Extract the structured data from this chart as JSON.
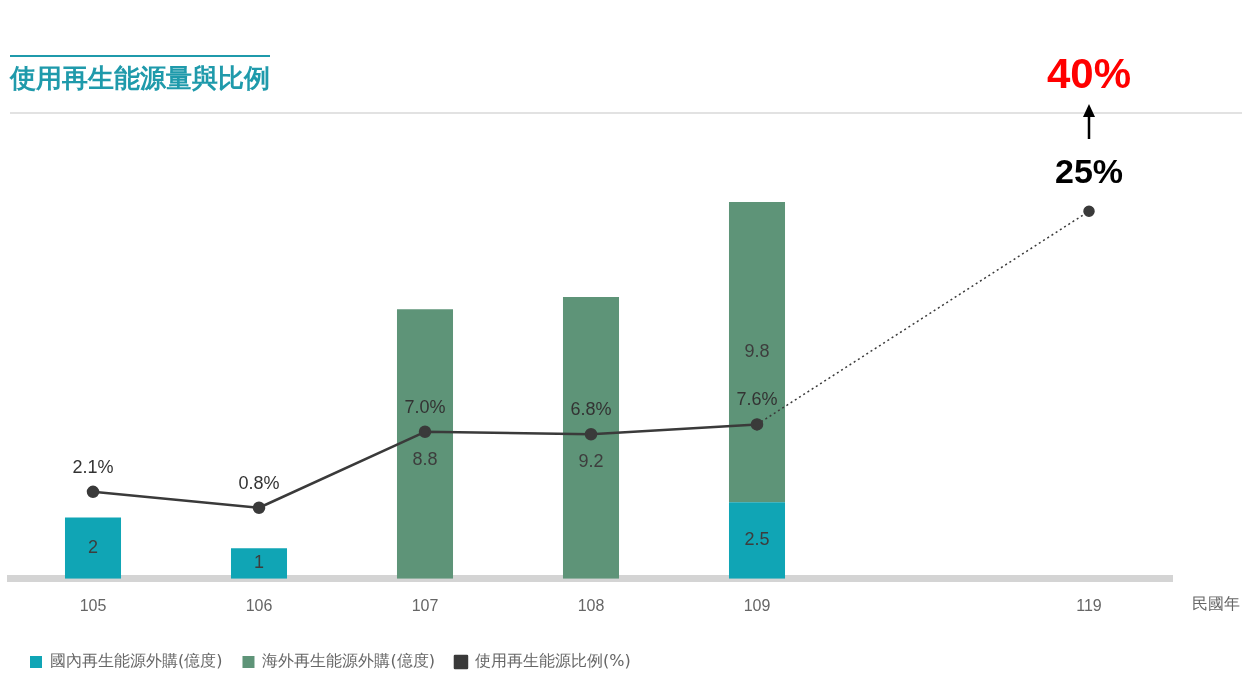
{
  "chart_data": {
    "type": "bar",
    "title": "使用再生能源量與比例",
    "xlabel": "民國年",
    "categories": [
      "105",
      "106",
      "107",
      "108",
      "109",
      null,
      "119"
    ],
    "stacked": true,
    "grid": false,
    "legend": "bottom left",
    "marker": "circle",
    "series": [
      {
        "name": "國內再生能源外購(億度)",
        "color": "#10a5b5",
        "values": [
          2,
          1,
          null,
          null,
          2.5,
          null,
          null
        ],
        "value_labels": [
          "2",
          "1",
          null,
          null,
          "2.5",
          null,
          null
        ]
      },
      {
        "name": "海外再生能源外購(億度)",
        "color": "#5e9478",
        "values": [
          null,
          null,
          8.8,
          9.2,
          9.8,
          null,
          null
        ],
        "value_labels": [
          null,
          null,
          "8.8",
          "9.2",
          "9.8",
          null,
          null
        ]
      },
      {
        "name": "使用再生能源比例(%)",
        "type": "line",
        "axis": "y2",
        "color": "#3a3a3a",
        "line_style": "solid",
        "values": [
          2.1,
          0.8,
          7.0,
          6.8,
          7.6,
          null,
          null
        ],
        "value_labels": [
          "2.1%",
          "0.8%",
          "7.0%",
          "6.8%",
          "7.6%",
          null,
          null
        ]
      },
      {
        "type": "line",
        "axis": "y2",
        "color": "#3a3a3a",
        "line_style": "dotted",
        "marker": "circle",
        "values": [
          null,
          null,
          null,
          null,
          7.6,
          null,
          25
        ],
        "value_labels": [
          null,
          null,
          null,
          null,
          null,
          null,
          "25%"
        ]
      }
    ],
    "annotations": [
      "40%"
    ]
  }
}
